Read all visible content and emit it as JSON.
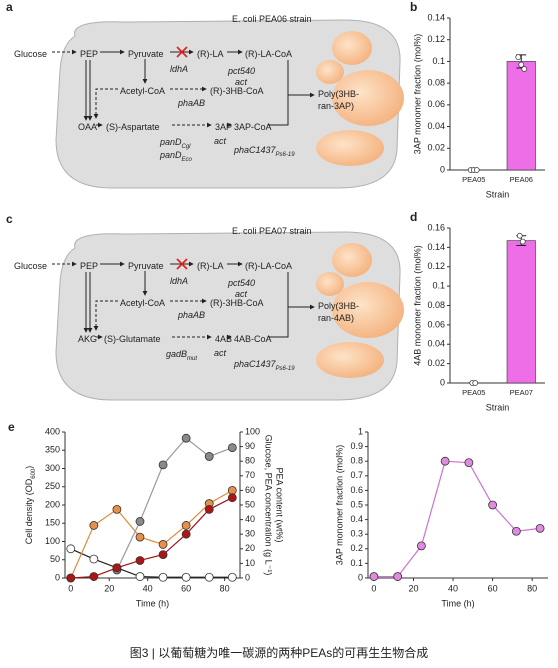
{
  "caption": "图3 | 以葡萄糖为唯一碳源的两种PEAs的可再生生物合成",
  "diagrams": [
    {
      "panel": "a",
      "nodes": [
        {
          "text": "E. coli PEA06 strain"
        },
        {
          "text": "Glucose"
        },
        {
          "text": "PEP"
        },
        {
          "text": "Pyruvate"
        },
        {
          "text": "(R)-LA"
        },
        {
          "text": "(R)-LA-CoA"
        },
        {
          "text": "ldhA"
        },
        {
          "text": "pct540"
        },
        {
          "text": "act"
        },
        {
          "text": "Acetyl-CoA"
        },
        {
          "text": "phaAB"
        },
        {
          "text": "(R)-3HB-CoA"
        },
        {
          "text": "Poly(3HB-"
        },
        {
          "text": "ran-3AP)"
        },
        {
          "text": "OAA"
        },
        {
          "text": "(S)-Aspartate"
        },
        {
          "text": "3AP"
        },
        {
          "text": "3AP-CoA"
        },
        {
          "text": "panD",
          "sub": "Cgl"
        },
        {
          "text": "panD",
          "sub": "Eco"
        },
        {
          "text": "act"
        },
        {
          "text": "phaC1437",
          "sub": "Ps6-19"
        }
      ]
    },
    {
      "panel": "c",
      "nodes": [
        {
          "text": "E. coli PEA07 strain"
        },
        {
          "text": "Glucose"
        },
        {
          "text": "PEP"
        },
        {
          "text": "Pyruvate"
        },
        {
          "text": "(R)-LA"
        },
        {
          "text": "(R)-LA-CoA"
        },
        {
          "text": "ldhA"
        },
        {
          "text": "pct540"
        },
        {
          "text": "act"
        },
        {
          "text": "Acetyl-CoA"
        },
        {
          "text": "phaAB"
        },
        {
          "text": "(R)-3HB-CoA"
        },
        {
          "text": "Poly(3HB-"
        },
        {
          "text": "ran-4AB)"
        },
        {
          "text": "AKG"
        },
        {
          "text": "(S)-Glutamate"
        },
        {
          "text": "4AB"
        },
        {
          "text": "4AB-CoA"
        },
        {
          "text": "gadB",
          "sub": "mut"
        },
        {
          "text": "act"
        },
        {
          "text": "phaC1437",
          "sub": "Ps6-19"
        }
      ]
    }
  ],
  "chart_data": [
    {
      "panel": "b",
      "type": "bar",
      "categories": [
        "PEA05",
        "PEA06"
      ],
      "values": [
        0,
        0.1
      ],
      "errors": [
        0,
        0.006
      ],
      "points": [
        [
          0,
          0,
          0
        ],
        [
          0.104,
          0.097,
          0.093
        ]
      ],
      "color": "#ee6ee8",
      "ylabel": "3AP monomer fraction (mol%)",
      "xlabel": "Strain",
      "ylim": [
        0,
        0.14
      ],
      "yticks": [
        0,
        0.02,
        0.04,
        0.06,
        0.08,
        0.1,
        0.12,
        0.14
      ]
    },
    {
      "panel": "d",
      "type": "bar",
      "categories": [
        "PEA05",
        "PEA07"
      ],
      "values": [
        0,
        0.147
      ],
      "errors": [
        0,
        0.005
      ],
      "points": [
        [
          0,
          0
        ],
        [
          0.152,
          0.146
        ]
      ],
      "color": "#ee6ee8",
      "ylabel": "4AB monomer fraction (mol%)",
      "xlabel": "Strain",
      "ylim": [
        0,
        0.16
      ],
      "yticks": [
        0,
        0.02,
        0.04,
        0.06,
        0.08,
        0.1,
        0.12,
        0.14,
        0.16
      ]
    },
    {
      "panel": "e",
      "type": "line",
      "x": [
        0,
        12,
        24,
        36,
        48,
        60,
        72,
        84
      ],
      "xlim": [
        -3,
        88
      ],
      "xticks": [
        0,
        20,
        40,
        60,
        80
      ],
      "xlabel": "Time (h)",
      "ylabel": {
        "text": "Cell density (OD",
        "sub": "600",
        "after": ")"
      },
      "y2label": [
        "Glucose, PEA concentration (g L⁻¹)",
        "PEA content (wt%)"
      ],
      "ylim": [
        0,
        400
      ],
      "yticks": [
        0,
        50,
        100,
        150,
        200,
        250,
        300,
        350,
        400
      ],
      "y2lim": [
        0,
        100
      ],
      "y2ticks": [
        0,
        10,
        20,
        30,
        40,
        50,
        60,
        70,
        80,
        90,
        100
      ],
      "series": [
        {
          "color": "#9a9a9a",
          "marker": "#8a8a8a",
          "values": [
            null,
            null,
            22,
            155,
            310,
            383,
            333,
            357
          ]
        },
        {
          "color": "#222222",
          "marker": "#ffffff",
          "axis": "y2",
          "values": [
            20,
            13,
            7,
            1,
            0.5,
            0.5,
            0.5,
            0.5
          ]
        },
        {
          "color": "#e08a3c",
          "marker": "#e8904a",
          "axis": "y2",
          "values": [
            0,
            36,
            47,
            28,
            23,
            36,
            51,
            60
          ]
        },
        {
          "color": "#a01010",
          "marker": "#b01515",
          "axis": "y2",
          "values": [
            0,
            1,
            7,
            12,
            16,
            30,
            47,
            55
          ]
        }
      ]
    },
    {
      "type": "line",
      "x": [
        0,
        12,
        24,
        36,
        48,
        60,
        72,
        84
      ],
      "xlim": [
        -3,
        88
      ],
      "xticks": [
        0,
        20,
        40,
        60,
        80
      ],
      "xlabel": "Time (h)",
      "ylabel": "3AP monomer fraction (mol%)",
      "ylim": [
        0,
        1
      ],
      "yticks": [
        0,
        0.1,
        0.2,
        0.3,
        0.4,
        0.5,
        0.6,
        0.7,
        0.8,
        0.9,
        1
      ],
      "series": [
        {
          "color": "#d070d0",
          "marker": "#e08ae0",
          "values": [
            0.01,
            0.01,
            0.22,
            0.8,
            0.79,
            0.5,
            0.32,
            0.34
          ]
        }
      ]
    }
  ]
}
